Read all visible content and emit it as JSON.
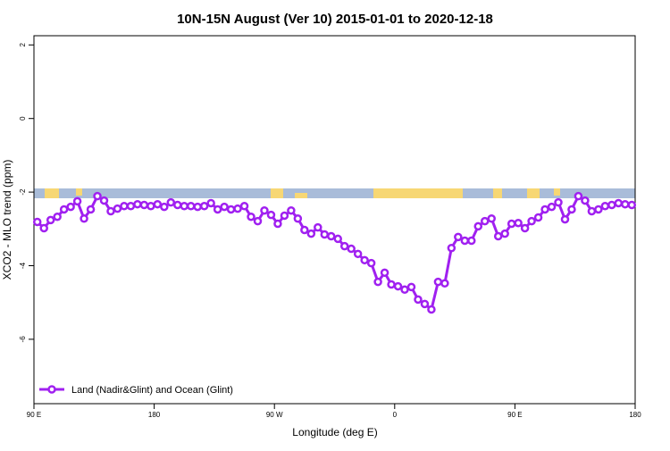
{
  "chart_data": {
    "type": "line",
    "title": "10N-15N August (Ver 10)   2015-01-01 to 2020-12-18",
    "x_label": "Longitude (deg E)",
    "y_label": "XCO2 - MLO trend (ppm)",
    "xlim": [
      90,
      540
    ],
    "ylim": [
      -7.75,
      2.25
    ],
    "xticks": [
      {
        "value": 90,
        "label": "90 E"
      },
      180,
      {
        "value": 270,
        "label": "90 W"
      },
      {
        "value": 360,
        "label": "0"
      },
      {
        "value": 450,
        "label": "90 E"
      },
      {
        "value": 540,
        "label": "180"
      }
    ],
    "yticks": [
      2,
      0,
      -2,
      -4,
      -6
    ],
    "legend": "bottom-left",
    "x": [
      92.5,
      97.5,
      102.5,
      107.5,
      112.5,
      117.5,
      122.5,
      127.5,
      132.5,
      137.5,
      142.5,
      147.5,
      152.5,
      157.5,
      162.5,
      167.5,
      172.5,
      177.5,
      182.5,
      187.5,
      192.5,
      197.5,
      202.5,
      207.5,
      212.5,
      217.5,
      222.5,
      227.5,
      232.5,
      237.5,
      242.5,
      247.5,
      252.5,
      257.5,
      262.5,
      267.5,
      272.5,
      277.5,
      282.5,
      287.5,
      292.5,
      297.5,
      302.5,
      307.5,
      312.5,
      317.5,
      322.5,
      327.5,
      332.5,
      337.5,
      342.5,
      347.5,
      352.5,
      357.5,
      362.5,
      367.5,
      372.5,
      377.5,
      382.5,
      387.5,
      392.5,
      397.5,
      402.5,
      407.5,
      412.5,
      417.5,
      422.5,
      427.5,
      432.5,
      437.5,
      442.5,
      447.5,
      452.5,
      457.5,
      462.5,
      467.5,
      472.5,
      477.5,
      482.5,
      487.5,
      492.5,
      497.5,
      502.5,
      507.5,
      512.5,
      517.5,
      522.5,
      527.5,
      532.5,
      537.5
    ],
    "series": [
      {
        "name": "Land (Nadir&Glint) and Ocean (Glint)",
        "color": "#a020f0",
        "values": [
          -2.81,
          -2.98,
          -2.76,
          -2.67,
          -2.47,
          -2.4,
          -2.25,
          -2.72,
          -2.47,
          -2.11,
          -2.23,
          -2.52,
          -2.45,
          -2.38,
          -2.38,
          -2.33,
          -2.35,
          -2.38,
          -2.33,
          -2.4,
          -2.28,
          -2.35,
          -2.38,
          -2.38,
          -2.4,
          -2.38,
          -2.3,
          -2.47,
          -2.4,
          -2.47,
          -2.45,
          -2.38,
          -2.67,
          -2.79,
          -2.5,
          -2.62,
          -2.86,
          -2.64,
          -2.5,
          -2.72,
          -3.03,
          -3.13,
          -2.96,
          -3.15,
          -3.2,
          -3.27,
          -3.47,
          -3.54,
          -3.68,
          -3.85,
          -3.93,
          -4.44,
          -4.19,
          -4.51,
          -4.56,
          -4.65,
          -4.58,
          -4.92,
          -5.04,
          -5.19,
          -4.44,
          -4.48,
          -3.52,
          -3.22,
          -3.32,
          -3.32,
          -2.93,
          -2.79,
          -2.72,
          -3.2,
          -3.13,
          -2.86,
          -2.84,
          -2.98,
          -2.79,
          -2.69,
          -2.47,
          -2.4,
          -2.28,
          -2.74,
          -2.47,
          -2.11,
          -2.23,
          -2.52,
          -2.47,
          -2.38,
          -2.35,
          -2.3,
          -2.33,
          -2.35
        ]
      }
    ]
  }
}
